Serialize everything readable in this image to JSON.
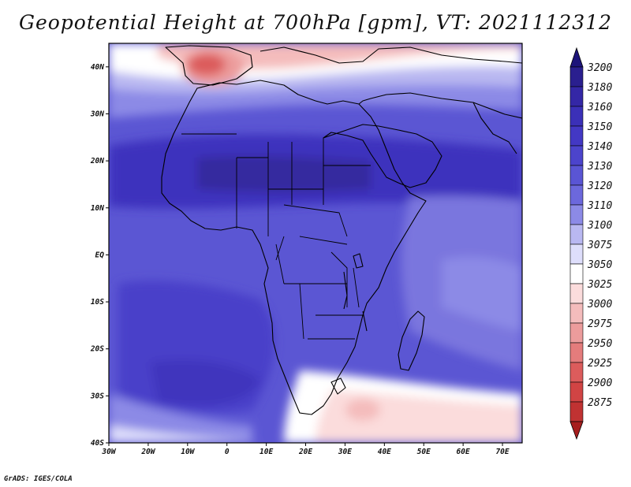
{
  "title": "Geopotential Height at 700hPa [gpm], VT: 2021112312",
  "credit": "GrADS: IGES/COLA",
  "map": {
    "lon_range": [
      -30,
      75
    ],
    "lat_range": [
      -40,
      45
    ],
    "lat_ticks": [
      {
        "value": 40,
        "label": "40N"
      },
      {
        "value": 30,
        "label": "30N"
      },
      {
        "value": 20,
        "label": "20N"
      },
      {
        "value": 10,
        "label": "10N"
      },
      {
        "value": 0,
        "label": "EQ"
      },
      {
        "value": -10,
        "label": "10S"
      },
      {
        "value": -20,
        "label": "20S"
      },
      {
        "value": -30,
        "label": "30S"
      },
      {
        "value": -40,
        "label": "40S"
      }
    ],
    "lon_ticks": [
      {
        "value": -30,
        "label": "30W"
      },
      {
        "value": -20,
        "label": "20W"
      },
      {
        "value": -10,
        "label": "10W"
      },
      {
        "value": 0,
        "label": "0"
      },
      {
        "value": 10,
        "label": "10E"
      },
      {
        "value": 20,
        "label": "20E"
      },
      {
        "value": 30,
        "label": "30E"
      },
      {
        "value": 40,
        "label": "40E"
      },
      {
        "value": 50,
        "label": "50E"
      },
      {
        "value": 60,
        "label": "60E"
      },
      {
        "value": 70,
        "label": "70E"
      }
    ]
  },
  "colorbar": {
    "levels": [
      {
        "label": "3200",
        "color": "#2a1f8f"
      },
      {
        "label": "3180",
        "color": "#3427a6"
      },
      {
        "label": "3160",
        "color": "#3b30b8"
      },
      {
        "label": "3150",
        "color": "#4338c4"
      },
      {
        "label": "3140",
        "color": "#4c44cc"
      },
      {
        "label": "3130",
        "color": "#5a55d4"
      },
      {
        "label": "3120",
        "color": "#6c68dc"
      },
      {
        "label": "3110",
        "color": "#8c8ae6"
      },
      {
        "label": "3100",
        "color": "#b9b8f1"
      },
      {
        "label": "3075",
        "color": "#dedefb"
      },
      {
        "label": "3050",
        "color": "#ffffff"
      },
      {
        "label": "3025",
        "color": "#fbdcdc"
      },
      {
        "label": "3000",
        "color": "#f4bcbc"
      },
      {
        "label": "2975",
        "color": "#ec9c9c"
      },
      {
        "label": "2950",
        "color": "#e47c7c"
      },
      {
        "label": "2925",
        "color": "#dc5c5c"
      },
      {
        "label": "2900",
        "color": "#d14444"
      },
      {
        "label": "2875",
        "color": "#c03232"
      }
    ],
    "top_color": "#1d147a",
    "bottom_color": "#a61e1e"
  }
}
